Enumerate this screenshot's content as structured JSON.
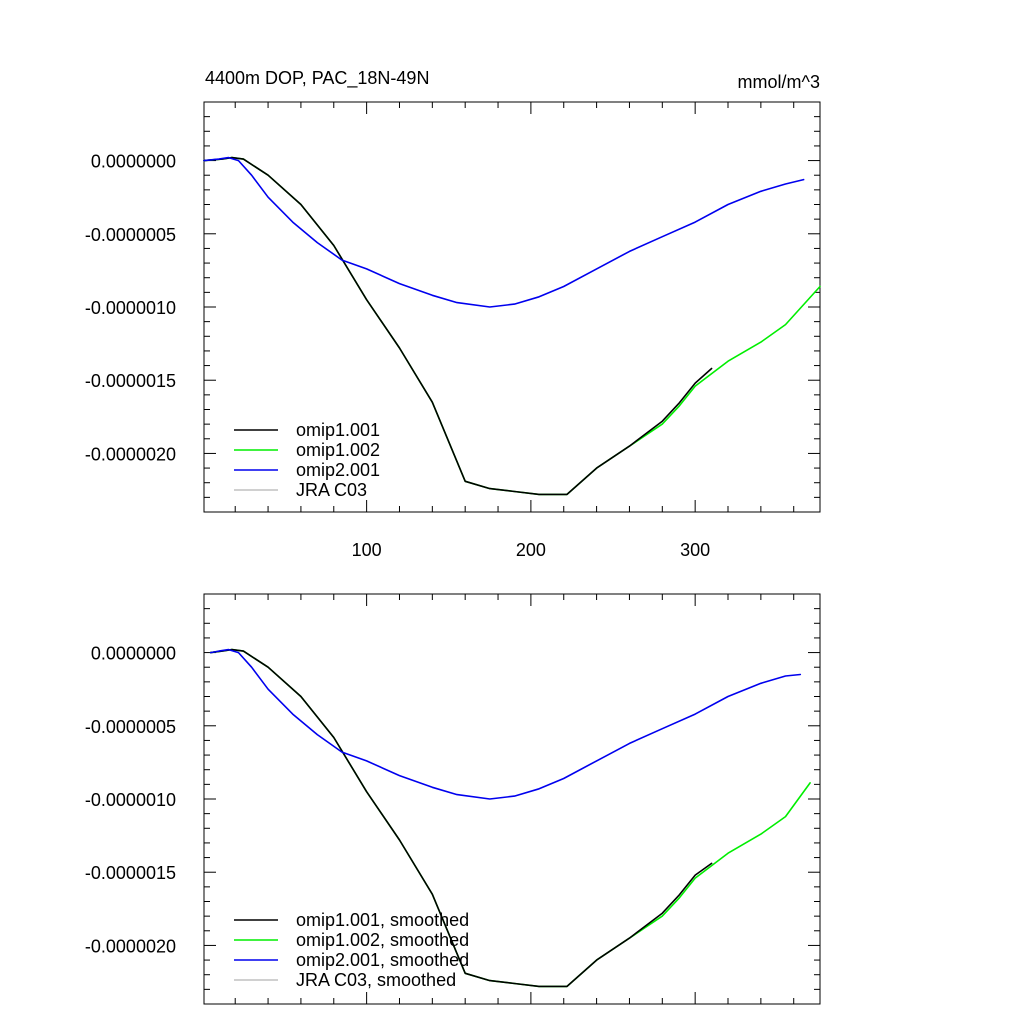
{
  "chart_data": [
    {
      "type": "line",
      "title": "4400m DOP, PAC_18N-49N",
      "units": "mmol/m^3",
      "xlim": [
        1,
        376
      ],
      "ylim": [
        -2.4e-06,
        4e-07
      ],
      "xticks": [
        100,
        200,
        300
      ],
      "xtick_labels": [
        "100",
        "200",
        "300"
      ],
      "yticks": [
        0,
        -5e-07,
        -1e-06,
        -1.5e-06,
        -2e-06
      ],
      "ytick_labels": [
        "0.0000000",
        "-0.0000005",
        "-0.0000010",
        "-0.0000015",
        "-0.0000020"
      ],
      "show_xtick_labels": true,
      "legend_position": "bottom-left",
      "series": [
        {
          "name": "omip1.001",
          "color": "#000000",
          "x": [
            1,
            12,
            18,
            25,
            40,
            60,
            80,
            100,
            120,
            140,
            160,
            175,
            190,
            205,
            222,
            240,
            260,
            280,
            290,
            300,
            310
          ],
          "y": [
            0,
            1e-08,
            2e-08,
            1e-08,
            -1e-07,
            -3e-07,
            -5.8e-07,
            -9.5e-07,
            -1.28e-06,
            -1.65e-06,
            -2.19e-06,
            -2.24e-06,
            -2.26e-06,
            -2.28e-06,
            -2.28e-06,
            -2.1e-06,
            -1.95e-06,
            -1.78e-06,
            -1.66e-06,
            -1.52e-06,
            -1.42e-06
          ]
        },
        {
          "name": "omip1.002",
          "color": "#00ee00",
          "x": [
            1,
            12,
            18,
            25,
            40,
            60,
            80,
            100,
            120,
            140,
            160,
            175,
            190,
            205,
            222,
            240,
            260,
            280,
            290,
            300,
            320,
            340,
            355,
            376
          ],
          "y": [
            0,
            1e-08,
            2e-08,
            1e-08,
            -1e-07,
            -3e-07,
            -5.8e-07,
            -9.5e-07,
            -1.28e-06,
            -1.65e-06,
            -2.19e-06,
            -2.24e-06,
            -2.26e-06,
            -2.28e-06,
            -2.28e-06,
            -2.1e-06,
            -1.95e-06,
            -1.8e-06,
            -1.68e-06,
            -1.54e-06,
            -1.37e-06,
            -1.24e-06,
            -1.12e-06,
            -8.6e-07
          ]
        },
        {
          "name": "omip2.001",
          "color": "#0000ee",
          "x": [
            1,
            10,
            16,
            22,
            30,
            40,
            55,
            70,
            85,
            100,
            120,
            140,
            155,
            175,
            190,
            205,
            220,
            240,
            260,
            280,
            300,
            320,
            340,
            355,
            366
          ],
          "y": [
            0,
            1e-08,
            2e-08,
            0,
            -1e-07,
            -2.5e-07,
            -4.2e-07,
            -5.6e-07,
            -6.8e-07,
            -7.4e-07,
            -8.4e-07,
            -9.2e-07,
            -9.7e-07,
            -1e-06,
            -9.8e-07,
            -9.3e-07,
            -8.6e-07,
            -7.4e-07,
            -6.2e-07,
            -5.2e-07,
            -4.2e-07,
            -3e-07,
            -2.1e-07,
            -1.6e-07,
            -1.3e-07
          ]
        },
        {
          "name": "JRA C03",
          "color": "#c0c0c0",
          "x": [],
          "y": []
        }
      ]
    },
    {
      "type": "line",
      "title": "",
      "units": "",
      "xlim": [
        1,
        376
      ],
      "ylim": [
        -2.4e-06,
        4e-07
      ],
      "xticks": [
        100,
        200,
        300
      ],
      "xtick_labels": [
        "",
        "",
        ""
      ],
      "yticks": [
        0,
        -5e-07,
        -1e-06,
        -1.5e-06,
        -2e-06
      ],
      "ytick_labels": [
        "0.0000000",
        "-0.0000005",
        "-0.0000010",
        "-0.0000015",
        "-0.0000020"
      ],
      "show_xtick_labels": false,
      "legend_position": "bottom-left",
      "series": [
        {
          "name": "omip1.001, smoothed",
          "color": "#000000",
          "x": [
            5,
            12,
            18,
            25,
            40,
            60,
            80,
            100,
            120,
            140,
            160,
            175,
            190,
            205,
            222,
            240,
            260,
            280,
            290,
            300,
            310
          ],
          "y": [
            0,
            1e-08,
            2e-08,
            1e-08,
            -1e-07,
            -3e-07,
            -5.8e-07,
            -9.5e-07,
            -1.28e-06,
            -1.65e-06,
            -2.19e-06,
            -2.24e-06,
            -2.26e-06,
            -2.28e-06,
            -2.28e-06,
            -2.1e-06,
            -1.95e-06,
            -1.78e-06,
            -1.66e-06,
            -1.52e-06,
            -1.44e-06
          ]
        },
        {
          "name": "omip1.002, smoothed",
          "color": "#00ee00",
          "x": [
            5,
            12,
            18,
            25,
            40,
            60,
            80,
            100,
            120,
            140,
            160,
            175,
            190,
            205,
            222,
            240,
            260,
            280,
            290,
            300,
            320,
            340,
            355,
            370
          ],
          "y": [
            0,
            1e-08,
            2e-08,
            1e-08,
            -1e-07,
            -3e-07,
            -5.8e-07,
            -9.5e-07,
            -1.28e-06,
            -1.65e-06,
            -2.19e-06,
            -2.24e-06,
            -2.26e-06,
            -2.28e-06,
            -2.28e-06,
            -2.1e-06,
            -1.95e-06,
            -1.8e-06,
            -1.68e-06,
            -1.54e-06,
            -1.37e-06,
            -1.24e-06,
            -1.12e-06,
            -8.9e-07
          ]
        },
        {
          "name": "omip2.001, smoothed",
          "color": "#0000ee",
          "x": [
            5,
            10,
            16,
            22,
            30,
            40,
            55,
            70,
            85,
            100,
            120,
            140,
            155,
            175,
            190,
            205,
            220,
            240,
            260,
            280,
            300,
            320,
            340,
            355,
            364
          ],
          "y": [
            0,
            1e-08,
            2e-08,
            0,
            -1e-07,
            -2.5e-07,
            -4.2e-07,
            -5.6e-07,
            -6.8e-07,
            -7.4e-07,
            -8.4e-07,
            -9.2e-07,
            -9.7e-07,
            -1e-06,
            -9.8e-07,
            -9.3e-07,
            -8.6e-07,
            -7.4e-07,
            -6.2e-07,
            -5.2e-07,
            -4.2e-07,
            -3e-07,
            -2.1e-07,
            -1.6e-07,
            -1.5e-07
          ]
        },
        {
          "name": "JRA C03, smoothed",
          "color": "#c0c0c0",
          "x": [],
          "y": []
        }
      ]
    }
  ]
}
